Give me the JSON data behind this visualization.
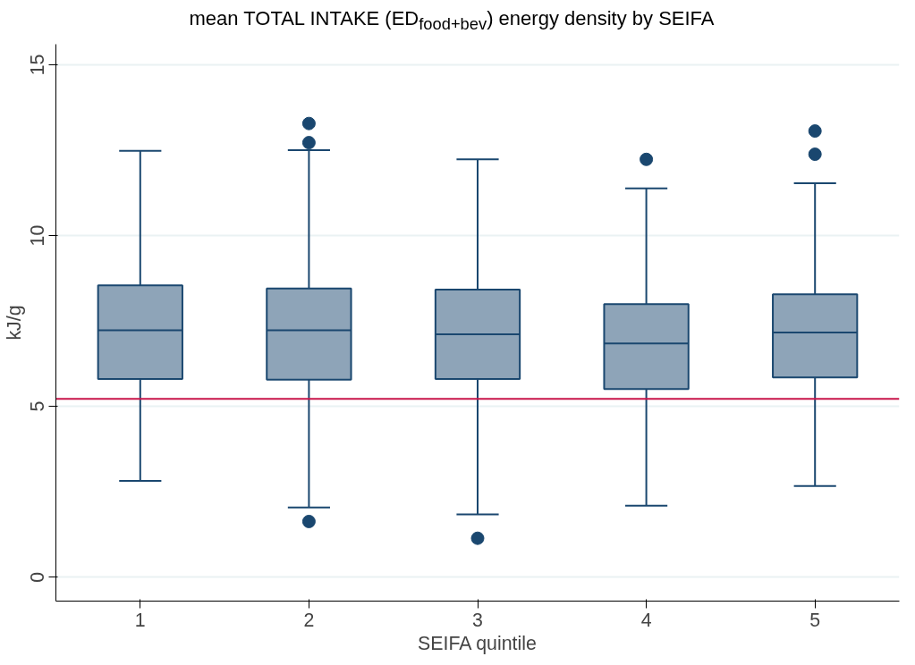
{
  "chart_data": {
    "type": "box",
    "title": "mean TOTAL INTAKE (ED$_{food+bev}$) energy density by SEIFA",
    "xlabel": "SEIFA quintile",
    "ylabel": "kJ/g",
    "categories": [
      "1",
      "2",
      "3",
      "4",
      "5"
    ],
    "boxes": [
      {
        "low": 2.82,
        "q1": 5.8,
        "median": 7.23,
        "q3": 8.54,
        "high": 12.48
      },
      {
        "low": 2.04,
        "q1": 5.78,
        "median": 7.23,
        "q3": 8.45,
        "high": 12.5,
        "outliers": [
          13.28,
          12.72,
          1.63
        ]
      },
      {
        "low": 1.84,
        "q1": 5.8,
        "median": 7.11,
        "q3": 8.42,
        "high": 12.23,
        "outliers": [
          1.14
        ]
      },
      {
        "low": 2.09,
        "q1": 5.51,
        "median": 6.84,
        "q3": 7.99,
        "high": 11.38,
        "outliers": [
          12.23
        ]
      },
      {
        "low": 2.67,
        "q1": 5.85,
        "median": 7.16,
        "q3": 8.28,
        "high": 11.53,
        "outliers": [
          13.06,
          12.38
        ]
      }
    ],
    "color": "#8ea4b8",
    "ylim": [
      -0.7,
      15.6
    ],
    "yticks": [
      0,
      5,
      10,
      15
    ],
    "grid": "y",
    "ref_lines": [
      {
        "axis": "y",
        "value": 5.22,
        "color": "#c8144a"
      }
    ]
  }
}
